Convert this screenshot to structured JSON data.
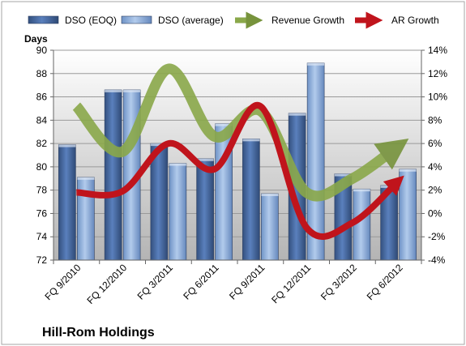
{
  "chart_data": {
    "type": "bar",
    "company_label": "Hill-Rom Holdings",
    "y_left_label": "Days",
    "categories": [
      "FQ 9/2010",
      "FQ 12/2010",
      "FQ 3/2011",
      "FQ 6/2011",
      "FQ 9/2011",
      "FQ 12/2011",
      "FQ 3/2012",
      "FQ 6/2012"
    ],
    "ylim_left": [
      72,
      90
    ],
    "yticks_left": [
      "72",
      "74",
      "76",
      "78",
      "80",
      "82",
      "84",
      "86",
      "88",
      "90"
    ],
    "ylim_right": [
      -4,
      14
    ],
    "yticks_right": [
      "-4%",
      "-2%",
      "0%",
      "2%",
      "4%",
      "6%",
      "8%",
      "10%",
      "12%",
      "14%"
    ],
    "series": [
      {
        "name": "DSO (EOQ)",
        "kind": "bar",
        "axis": "left",
        "color": "#4a6ea9",
        "values": [
          81.9,
          86.6,
          82.0,
          80.7,
          82.4,
          84.6,
          79.4,
          78.4
        ]
      },
      {
        "name": "DSO (average)",
        "kind": "bar",
        "axis": "left",
        "color": "#93b3dd",
        "values": [
          79.1,
          86.6,
          80.3,
          83.7,
          77.7,
          88.9,
          78.1,
          79.8
        ]
      },
      {
        "name": "Revenue Growth",
        "kind": "line",
        "axis": "right",
        "color": "#77933c",
        "values": [
          9.2,
          5.3,
          12.4,
          6.6,
          8.8,
          1.8,
          3.0,
          5.8
        ]
      },
      {
        "name": "AR Growth",
        "kind": "line",
        "axis": "right",
        "color": "#c0141c",
        "values": [
          1.8,
          1.9,
          6.0,
          3.8,
          9.2,
          -1.2,
          -0.8,
          2.8
        ]
      }
    ],
    "legend_position": "top",
    "grid": true
  }
}
